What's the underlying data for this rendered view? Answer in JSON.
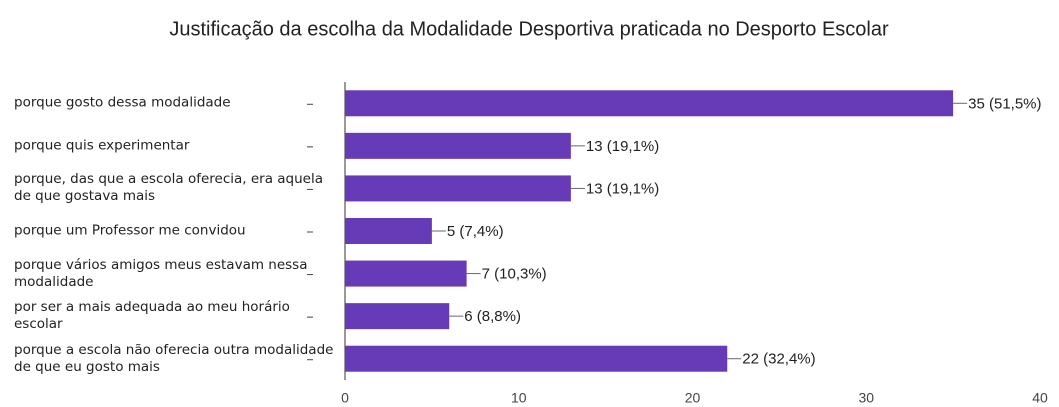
{
  "chart_data": {
    "type": "bar",
    "orientation": "horizontal",
    "title": "Justificação da escolha da Modalidade Desportiva praticada no Desporto Escolar",
    "categories": [
      "porque gosto dessa modalidade",
      "porque quis experimentar",
      "porque, das que a escola oferecia, era aquela de que gostava mais",
      "porque um Professor me convidou",
      "porque vários amigos meus estavam nessa modalidade",
      "por ser a mais adequada ao meu horário escolar",
      "porque a escola não oferecia outra modalidade de que eu gosto mais"
    ],
    "values": [
      35,
      13,
      13,
      5,
      7,
      6,
      22
    ],
    "value_labels": [
      "35 (51,5%)",
      "13 (19,1%)",
      "13 (19,1%)",
      "5 (7,4%)",
      "7 (10,3%)",
      "6 (8,8%)",
      "22 (32,4%)"
    ],
    "color": "#673ab7",
    "xlim": [
      0,
      40
    ],
    "xticks": [
      0,
      10,
      20,
      30,
      40
    ],
    "grid": false
  }
}
